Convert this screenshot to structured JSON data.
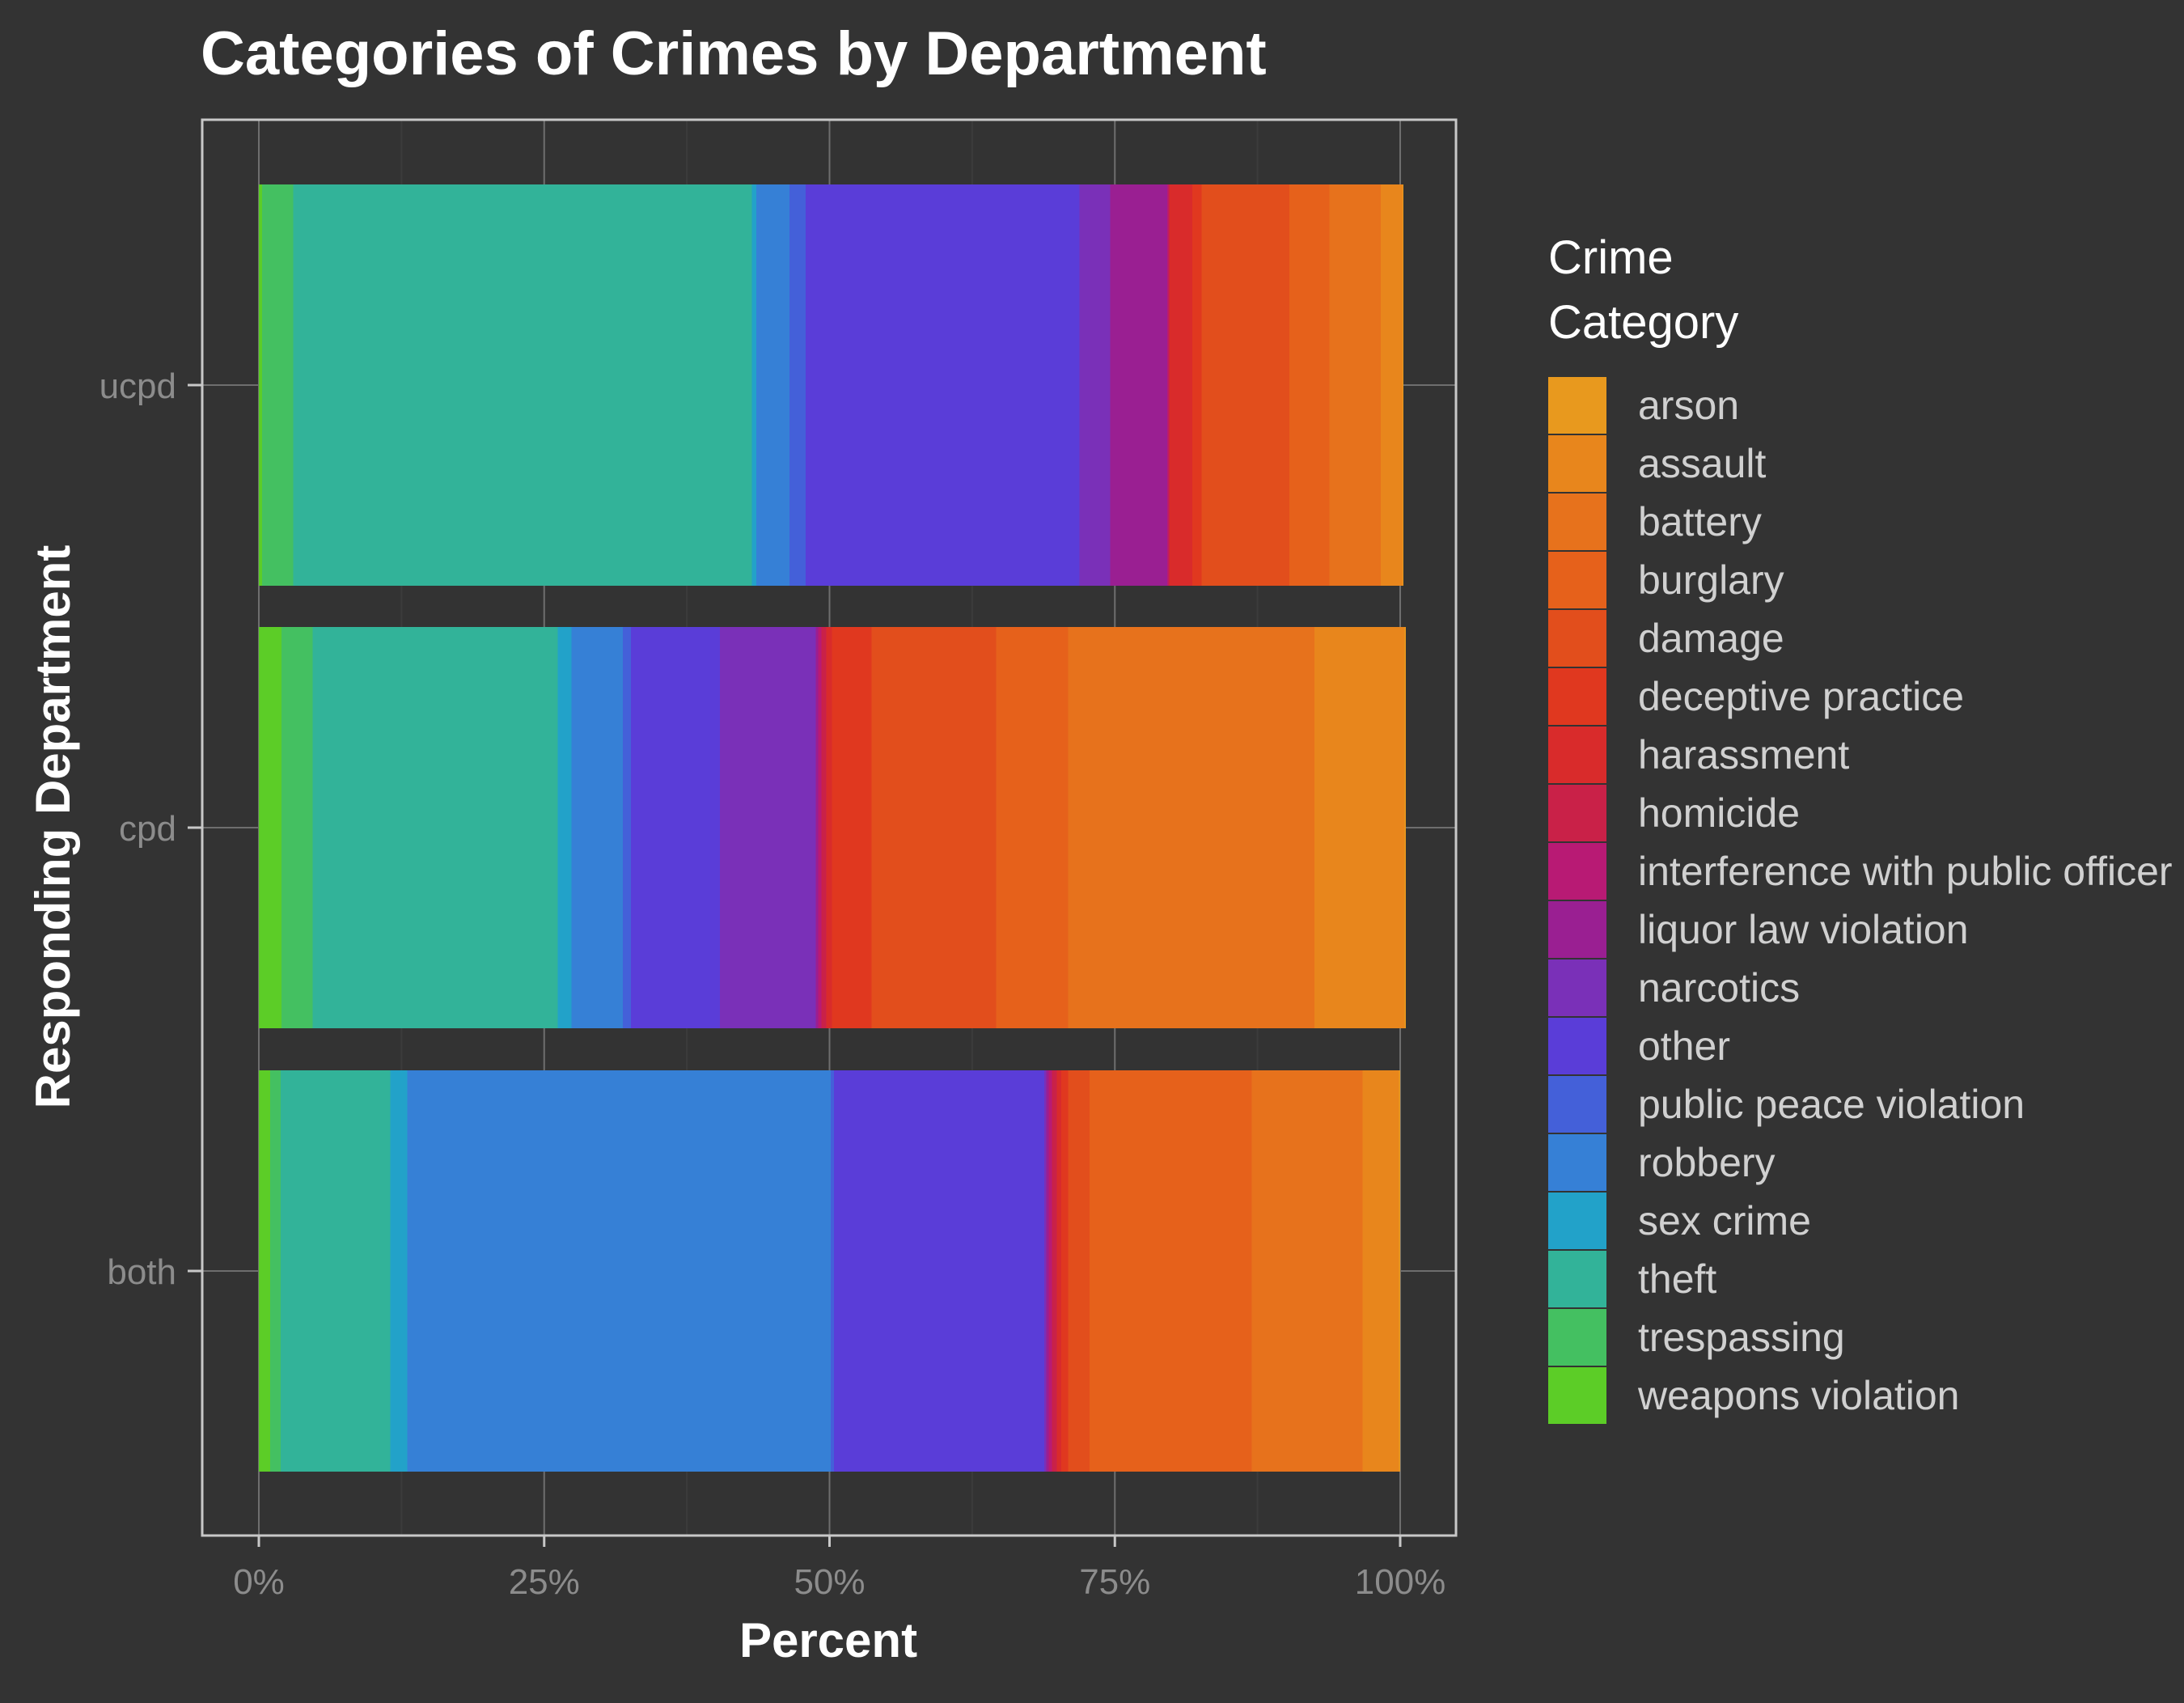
{
  "chart_data": {
    "type": "bar",
    "orientation": "horizontal",
    "stacked": true,
    "title": "Categories of Crimes by Department",
    "xlabel": "Percent",
    "ylabel": "Responding Department",
    "xlim": [
      0,
      100
    ],
    "x_ticks": [
      "0%",
      "25%",
      "50%",
      "75%",
      "100%"
    ],
    "grid": true,
    "legend_title": [
      "Crime",
      "Category"
    ],
    "legend_position": "right",
    "categories": [
      "ucpd",
      "cpd",
      "both"
    ],
    "series": [
      {
        "name": "weapons violation",
        "color": "#5ccd27",
        "values": [
          0.3,
          2.0,
          1.0
        ]
      },
      {
        "name": "trespassing",
        "color": "#44c061",
        "values": [
          2.7,
          2.7,
          0.9
        ]
      },
      {
        "name": "theft",
        "color": "#32b399",
        "values": [
          40.2,
          21.5,
          9.6
        ]
      },
      {
        "name": "sex crime",
        "color": "#22a2c9",
        "values": [
          0.4,
          1.2,
          1.5
        ]
      },
      {
        "name": "robbery",
        "color": "#3680d6",
        "values": [
          2.9,
          4.5,
          37.1
        ]
      },
      {
        "name": "public peace violation",
        "color": "#4460d9",
        "values": [
          1.4,
          0.7,
          0.3
        ]
      },
      {
        "name": "other",
        "color": "#5a3dd8",
        "values": [
          24.0,
          7.8,
          18.4
        ]
      },
      {
        "name": "narcotics",
        "color": "#7a30b8",
        "values": [
          2.7,
          8.4,
          0.2
        ]
      },
      {
        "name": "liquor law violation",
        "color": "#9a1f92",
        "values": [
          5.0,
          0.2,
          0.2
        ]
      },
      {
        "name": "interference with public officer",
        "color": "#b81a74",
        "values": [
          0.1,
          0.3,
          0.3
        ]
      },
      {
        "name": "homicide",
        "color": "#c92148",
        "values": [
          0.1,
          0.4,
          0.4
        ]
      },
      {
        "name": "harassment",
        "color": "#d92b2b",
        "values": [
          2.0,
          0.5,
          0.4
        ]
      },
      {
        "name": "deceptive practice",
        "color": "#e0381f",
        "values": [
          0.8,
          3.5,
          0.6
        ]
      },
      {
        "name": "damage",
        "color": "#e24e1c",
        "values": [
          7.7,
          10.9,
          1.9
        ]
      },
      {
        "name": "burglary",
        "color": "#e6611b",
        "values": [
          3.5,
          6.3,
          14.2
        ]
      },
      {
        "name": "battery",
        "color": "#e7721c",
        "values": [
          4.5,
          21.6,
          9.7
        ]
      },
      {
        "name": "assault",
        "color": "#e8861c",
        "values": [
          1.9,
          7.9,
          3.2
        ]
      },
      {
        "name": "arson",
        "color": "#e8991e",
        "values": [
          0.1,
          0.1,
          0.1
        ]
      }
    ]
  }
}
